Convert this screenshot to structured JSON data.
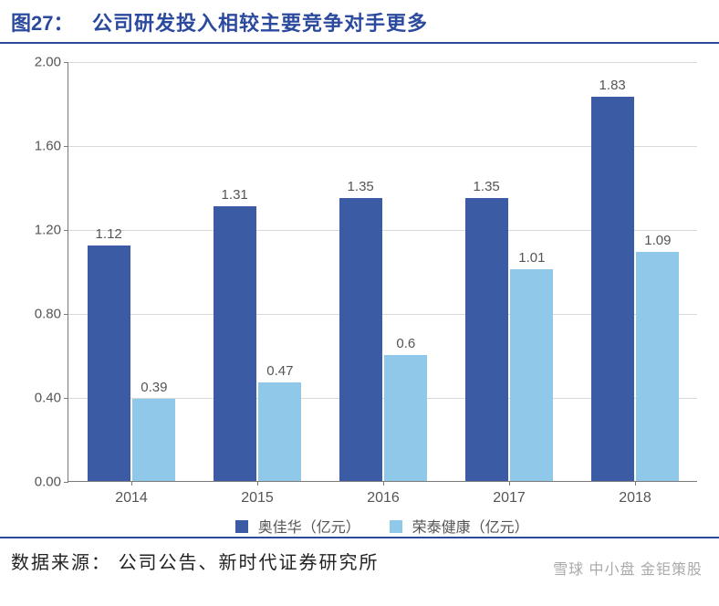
{
  "figure": {
    "number_label": "图27：",
    "title": "公司研发投入相较主要竞争对手更多",
    "title_color": "#2b4a9e",
    "title_fontsize": 22
  },
  "chart": {
    "type": "bar",
    "background_color": "#ffffff",
    "grid_color": "#d9d9d9",
    "axis_color": "#7a7a7a",
    "ylim": [
      0.0,
      2.0
    ],
    "ytick_step": 0.4,
    "yticks": [
      "0.00",
      "0.40",
      "0.80",
      "1.20",
      "1.60",
      "2.00"
    ],
    "categories": [
      "2014",
      "2015",
      "2016",
      "2017",
      "2018"
    ],
    "series": [
      {
        "name": "奥佳华（亿元）",
        "color": "#3b5ba5",
        "values": [
          1.12,
          1.31,
          1.35,
          1.35,
          1.83
        ]
      },
      {
        "name": "荣泰健康（亿元）",
        "color": "#8fc8e8",
        "values": [
          0.39,
          0.47,
          0.6,
          1.01,
          1.09
        ],
        "value_labels": [
          "0.39",
          "0.47",
          "0.6",
          "1.01",
          "1.09"
        ]
      }
    ],
    "label_fontsize": 15,
    "tick_fontsize": 15,
    "bar_group_gap": 0.3,
    "bar_inner_gap": 0.02
  },
  "legend": {
    "items": [
      "奥佳华（亿元）",
      "荣泰健康（亿元）"
    ],
    "colors": [
      "#3b5ba5",
      "#8fc8e8"
    ]
  },
  "source": {
    "label": "数据来源：",
    "text": "公司公告、新时代证券研究所"
  },
  "watermark": "雪球  中小盘  金钜策股"
}
